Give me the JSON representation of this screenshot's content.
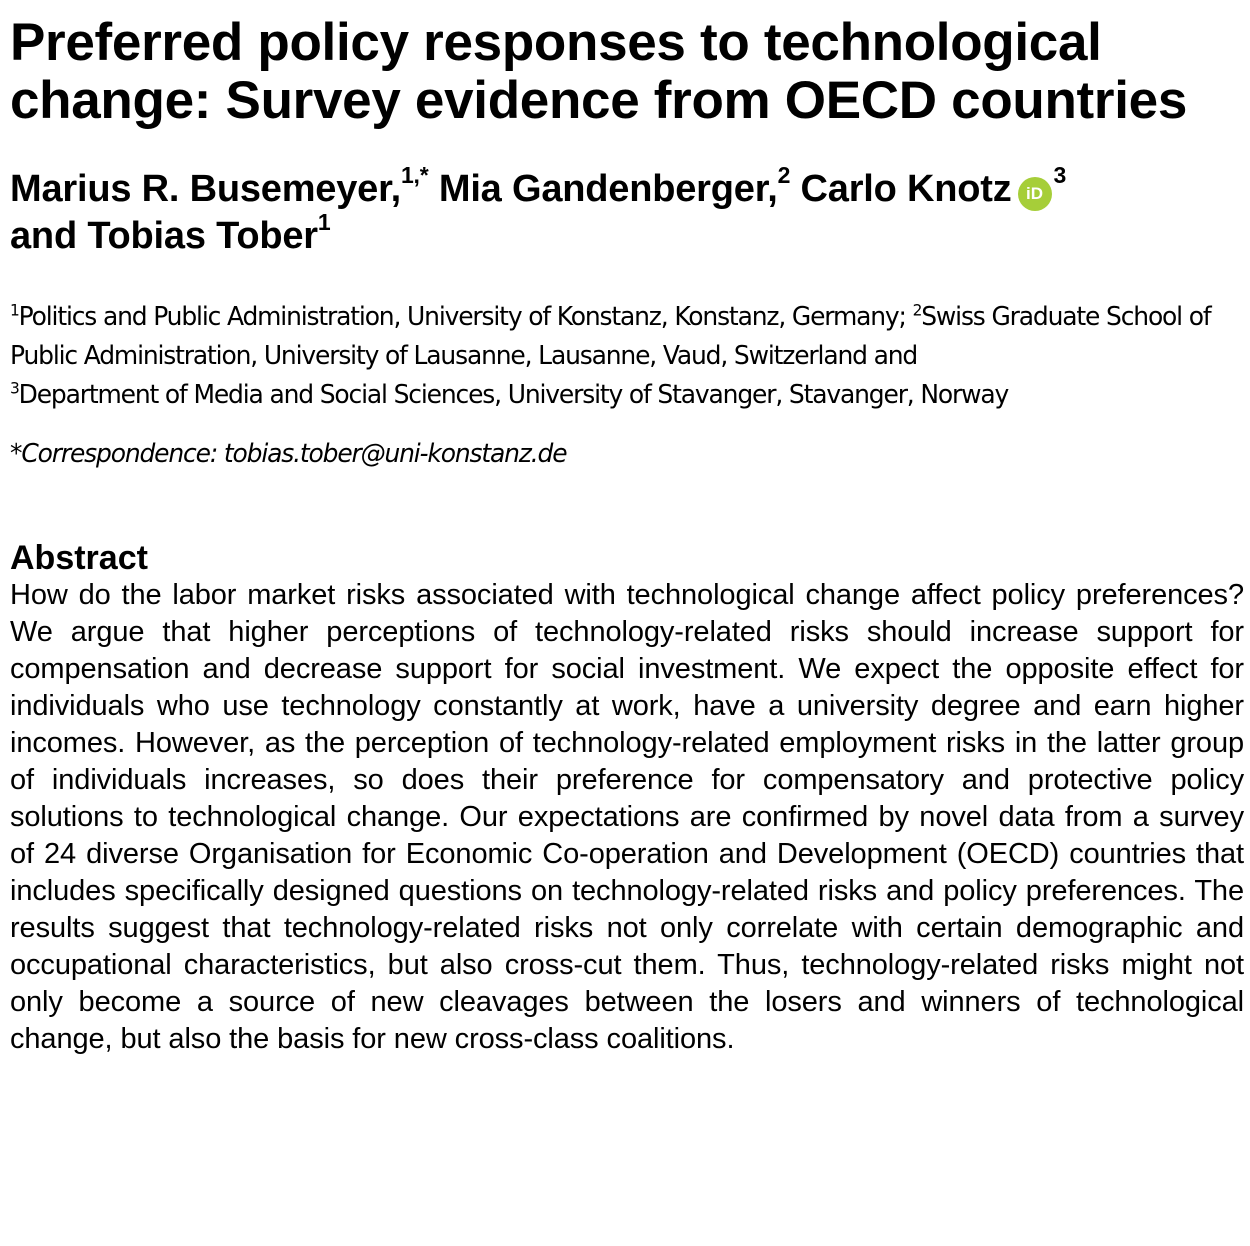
{
  "paper": {
    "title": "Preferred policy responses to technological change: Survey evidence from OECD countries",
    "authors": [
      {
        "name": "Marius R. Busemeyer,",
        "sup": "1,*"
      },
      {
        "name": "Mia Gandenberger,",
        "sup": "2"
      },
      {
        "name": "Carlo Knotz",
        "orcid_icon": "orcid-icon",
        "orcid_label": "iD",
        "sup": "3"
      },
      {
        "connector": "and",
        "name": "Tobias Tober",
        "sup": "1"
      }
    ],
    "affiliations": [
      {
        "sup": "1",
        "text": "Politics and Public Administration, University of Konstanz, Konstanz, Germany; "
      },
      {
        "sup": "2",
        "text": "Swiss Graduate School of Public Administration, University of Lausanne, Lausanne, Vaud, Switzerland and "
      },
      {
        "sup": "3",
        "text": "Department of Media and Social Sciences, University of Stavanger, Stavanger, Norway"
      }
    ],
    "correspondence": {
      "marker": "*",
      "text": "Correspondence: tobias.tober@uni-konstanz.de"
    },
    "abstract": {
      "heading": "Abstract",
      "body": "How do the labor market risks associated with technological change affect policy preferences? We argue that higher perceptions of technology-related risks should increase support for compensation and decrease support for social investment. We expect the opposite effect for individuals who use technology constantly at work, have a university degree and earn higher incomes. However, as the perception of technology-related employment risks in the latter group of individuals increases, so does their preference for compensatory and protective policy solutions to techno­logical change. Our expectations are confirmed by novel data from a survey of 24 di­verse Organisation for Economic Co-operation and Development (OECD) countries that includes specifically designed questions on technology-related risks and policy preferences. The results suggest that technology-related risks not only correlate with certain demographic and occupational characteristics, but also cross-cut them. Thus, technology-related risks might not only become a source of new cleavages be­tween the losers and winners of technological change, but also the basis for new cross-class coalitions."
    }
  }
}
